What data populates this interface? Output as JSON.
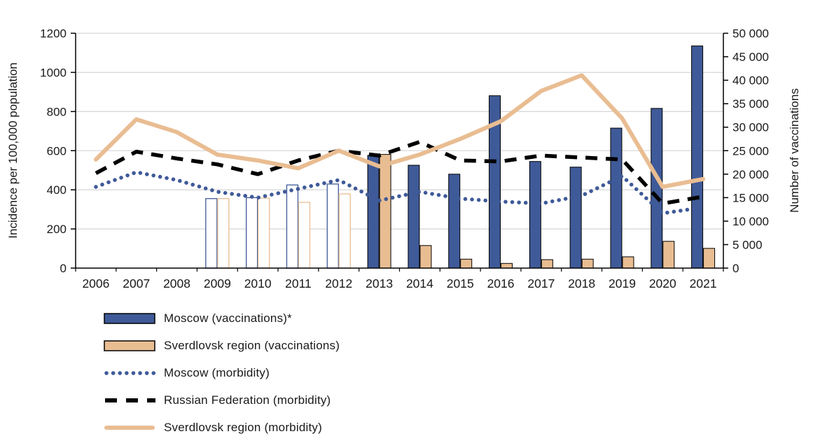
{
  "chart_data": {
    "type": "combo-bar-line",
    "categories": [
      "2006",
      "2007",
      "2008",
      "2009",
      "2010",
      "2011",
      "2012",
      "2013",
      "2014",
      "2015",
      "2016",
      "2017",
      "2018",
      "2019",
      "2020",
      "2021"
    ],
    "left_axis": {
      "label": "Incidence per 100,000 population",
      "min": 0,
      "max": 1200,
      "step": 200
    },
    "right_axis": {
      "label": "Number of vaccinations",
      "min": 0,
      "max": 50000,
      "step": 5000
    },
    "grid": true,
    "legend_position": "bottom-left",
    "bar_series": [
      {
        "name": "Moscow (vaccinations)*",
        "axis": "right",
        "color": "#3f5a98",
        "hollow_years": [
          "2009",
          "2010",
          "2011",
          "2012"
        ],
        "values": [
          null,
          null,
          null,
          14800,
          15000,
          17700,
          17900,
          24000,
          21900,
          20000,
          36700,
          22700,
          21500,
          29800,
          34000,
          47300
        ]
      },
      {
        "name": "Sverdlovsk region (vaccinations)",
        "axis": "right",
        "color": "#e9bd92",
        "hollow_years": [
          "2009",
          "2010",
          "2011",
          "2012"
        ],
        "values": [
          null,
          null,
          null,
          14800,
          14900,
          14000,
          15800,
          24200,
          4800,
          1900,
          1000,
          1800,
          1900,
          2400,
          5700,
          4200
        ]
      }
    ],
    "line_series": [
      {
        "name": "Moscow (morbidity)",
        "axis": "left",
        "color": "#3f5a98",
        "style": "dotted",
        "values": [
          415,
          490,
          450,
          390,
          360,
          405,
          450,
          345,
          390,
          355,
          340,
          330,
          370,
          470,
          280,
          310
        ]
      },
      {
        "name": "Russian Federation (morbidity)",
        "axis": "left",
        "color": "#000000",
        "style": "dashed",
        "values": [
          485,
          595,
          560,
          530,
          480,
          550,
          600,
          575,
          645,
          550,
          545,
          575,
          565,
          555,
          330,
          365
        ]
      },
      {
        "name": "Sverdlovsk region (morbidity)",
        "axis": "left",
        "color": "#e9bd92",
        "style": "solid",
        "values": [
          555,
          760,
          695,
          580,
          550,
          510,
          600,
          520,
          580,
          660,
          750,
          905,
          985,
          765,
          415,
          455
        ]
      }
    ]
  },
  "legend": {
    "items": [
      {
        "label": "Moscow (vaccinations)*"
      },
      {
        "label": "Sverdlovsk region (vaccinations)"
      },
      {
        "label": "Moscow (morbidity)"
      },
      {
        "label": "Russian Federation (morbidity)"
      },
      {
        "label": "Sverdlovsk region (morbidity)"
      }
    ]
  },
  "colors": {
    "moscow_blue": "#3f5a98",
    "sverdlovsk_tan": "#e9bd92",
    "rf_black": "#000000",
    "gridline": "#d9d9d9",
    "axis": "#000000",
    "text": "#1a1a1a"
  }
}
